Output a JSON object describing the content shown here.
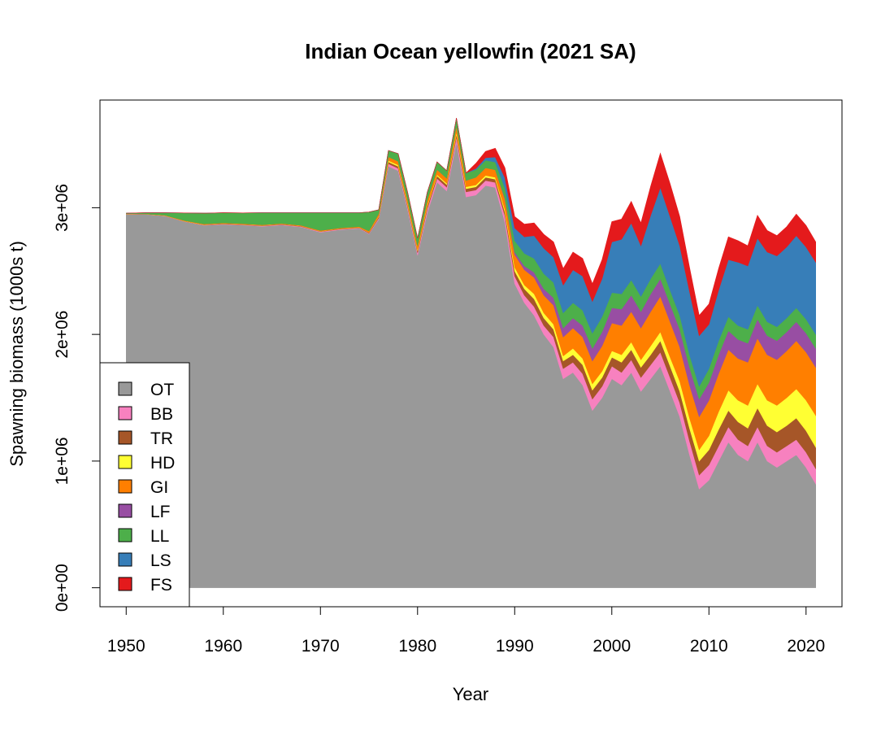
{
  "chart_data": {
    "type": "area",
    "stacked": true,
    "title": "Indian Ocean yellowfin (2021 SA)",
    "xlabel": "Year",
    "ylabel": "Spawning biomass (1000s t)",
    "xlim": [
      1947.3,
      2023.7
    ],
    "ylim": [
      -150000,
      3850000
    ],
    "x_ticks": [
      1950,
      1960,
      1970,
      1980,
      1990,
      2000,
      2010,
      2020
    ],
    "x_tick_labels": [
      "1950",
      "1960",
      "1970",
      "1980",
      "1990",
      "2000",
      "2010",
      "2020"
    ],
    "y_ticks": [
      0,
      1000000,
      2000000,
      3000000
    ],
    "y_tick_labels": [
      "0e+00",
      "1e+06",
      "2e+06",
      "3e+06"
    ],
    "grid": false,
    "legend_position": "bottom-left",
    "x": [
      1950,
      1952,
      1954,
      1956,
      1958,
      1960,
      1962,
      1964,
      1966,
      1968,
      1970,
      1972,
      1974,
      1975,
      1976,
      1977,
      1978,
      1979,
      1980,
      1981,
      1982,
      1983,
      1984,
      1985,
      1986,
      1987,
      1988,
      1989,
      1990,
      1991,
      1992,
      1993,
      1994,
      1995,
      1996,
      1997,
      1998,
      1999,
      2000,
      2001,
      2002,
      2003,
      2004,
      2005,
      2006,
      2007,
      2008,
      2009,
      2010,
      2011,
      2012,
      2013,
      2014,
      2015,
      2016,
      2017,
      2018,
      2019,
      2020,
      2021
    ],
    "series": [
      {
        "name": "OT",
        "color": "#999999",
        "values": [
          2949000,
          2947000,
          2934000,
          2890000,
          2861000,
          2869000,
          2863000,
          2853000,
          2863000,
          2848000,
          2806000,
          2826000,
          2836000,
          2794000,
          2909000,
          3327000,
          3292000,
          2980000,
          2625000,
          2961000,
          3202000,
          3133000,
          3518000,
          3085000,
          3100000,
          3175000,
          3160000,
          2885000,
          2400000,
          2250000,
          2150000,
          2000000,
          1900000,
          1650000,
          1700000,
          1600000,
          1400000,
          1500000,
          1650000,
          1600000,
          1700000,
          1550000,
          1650000,
          1750000,
          1550000,
          1350000,
          1050000,
          780000,
          850000,
          1000000,
          1150000,
          1050000,
          1000000,
          1150000,
          1000000,
          950000,
          1000000,
          1050000,
          950000,
          820000
        ]
      },
      {
        "name": "BB",
        "color": "#F781BF",
        "values": [
          1000,
          1000,
          2000,
          2000,
          3000,
          3000,
          3000,
          4000,
          4000,
          4000,
          5000,
          5000,
          5000,
          5000,
          10000,
          20000,
          20000,
          20000,
          20000,
          30000,
          30000,
          30000,
          40000,
          40000,
          40000,
          40000,
          40000,
          50000,
          60000,
          60000,
          70000,
          70000,
          80000,
          80000,
          80000,
          90000,
          90000,
          90000,
          100000,
          100000,
          100000,
          110000,
          110000,
          110000,
          110000,
          110000,
          110000,
          110000,
          120000,
          120000,
          120000,
          120000,
          120000,
          120000,
          120000,
          120000,
          120000,
          120000,
          120000,
          120000
        ]
      },
      {
        "name": "TR",
        "color": "#A65628",
        "values": [
          1000,
          1000,
          1000,
          2000,
          2000,
          2000,
          2000,
          3000,
          3000,
          3000,
          3000,
          3000,
          3000,
          5000,
          10000,
          15000,
          15000,
          15000,
          15000,
          20000,
          20000,
          20000,
          25000,
          25000,
          25000,
          25000,
          25000,
          30000,
          40000,
          50000,
          60000,
          60000,
          60000,
          60000,
          60000,
          70000,
          70000,
          70000,
          70000,
          80000,
          80000,
          80000,
          80000,
          90000,
          90000,
          90000,
          100000,
          110000,
          120000,
          130000,
          130000,
          140000,
          140000,
          150000,
          160000,
          160000,
          160000,
          170000,
          170000,
          170000
        ]
      },
      {
        "name": "HD",
        "color": "#FFFF33",
        "values": [
          1000,
          1000,
          1000,
          1000,
          1000,
          1000,
          1000,
          1000,
          1000,
          1000,
          1000,
          1000,
          1000,
          2000,
          5000,
          10000,
          10000,
          10000,
          10000,
          10000,
          10000,
          10000,
          15000,
          15000,
          15000,
          15000,
          15000,
          20000,
          30000,
          30000,
          40000,
          40000,
          40000,
          40000,
          50000,
          50000,
          50000,
          50000,
          50000,
          60000,
          60000,
          60000,
          70000,
          70000,
          70000,
          80000,
          80000,
          90000,
          110000,
          140000,
          160000,
          170000,
          180000,
          190000,
          200000,
          210000,
          220000,
          230000,
          240000,
          250000
        ]
      },
      {
        "name": "GI",
        "color": "#FF7F00",
        "values": [
          2000,
          2000,
          3000,
          4000,
          5000,
          5000,
          5000,
          5000,
          5000,
          5000,
          6000,
          6000,
          6000,
          10000,
          20000,
          30000,
          30000,
          30000,
          30000,
          40000,
          40000,
          40000,
          50000,
          50000,
          60000,
          60000,
          60000,
          80000,
          100000,
          120000,
          130000,
          140000,
          150000,
          150000,
          160000,
          170000,
          180000,
          200000,
          220000,
          230000,
          240000,
          250000,
          270000,
          280000,
          280000,
          270000,
          260000,
          260000,
          280000,
          300000,
          320000,
          330000,
          340000,
          360000,
          360000,
          360000,
          370000,
          380000,
          380000,
          380000
        ]
      },
      {
        "name": "LF",
        "color": "#984EA3",
        "values": [
          0,
          0,
          0,
          0,
          0,
          0,
          0,
          0,
          0,
          0,
          0,
          0,
          0,
          0,
          0,
          0,
          0,
          0,
          0,
          0,
          0,
          0,
          0,
          0,
          0,
          0,
          0,
          10000,
          20000,
          30000,
          40000,
          50000,
          60000,
          70000,
          80000,
          90000,
          100000,
          110000,
          120000,
          130000,
          130000,
          130000,
          140000,
          140000,
          140000,
          140000,
          140000,
          140000,
          140000,
          150000,
          150000,
          150000,
          150000,
          150000,
          150000,
          150000,
          150000,
          150000,
          150000,
          150000
        ]
      },
      {
        "name": "LL",
        "color": "#4DAF4A",
        "values": [
          3000,
          8000,
          20000,
          60000,
          85000,
          80000,
          85000,
          95000,
          85000,
          100000,
          140000,
          120000,
          110000,
          150000,
          30000,
          50000,
          60000,
          60000,
          60000,
          60000,
          60000,
          60000,
          60000,
          60000,
          60000,
          60000,
          60000,
          80000,
          90000,
          100000,
          110000,
          120000,
          120000,
          120000,
          120000,
          120000,
          120000,
          120000,
          120000,
          120000,
          120000,
          120000,
          120000,
          120000,
          110000,
          110000,
          100000,
          100000,
          110000,
          110000,
          110000,
          110000,
          110000,
          110000,
          110000,
          110000,
          110000,
          110000,
          110000,
          110000
        ]
      },
      {
        "name": "LS",
        "color": "#377EB8",
        "values": [
          0,
          0,
          0,
          0,
          0,
          0,
          0,
          0,
          0,
          0,
          0,
          0,
          0,
          0,
          0,
          0,
          0,
          0,
          0,
          0,
          0,
          0,
          0,
          0,
          10000,
          20000,
          40000,
          80000,
          100000,
          130000,
          180000,
          200000,
          200000,
          220000,
          260000,
          270000,
          250000,
          300000,
          400000,
          430000,
          450000,
          400000,
          500000,
          600000,
          580000,
          550000,
          500000,
          400000,
          350000,
          400000,
          450000,
          500000,
          500000,
          530000,
          550000,
          560000,
          560000,
          570000,
          570000,
          570000
        ]
      },
      {
        "name": "FS",
        "color": "#E41A1C",
        "values": [
          0,
          0,
          0,
          0,
          0,
          0,
          0,
          0,
          0,
          0,
          0,
          0,
          0,
          0,
          0,
          0,
          0,
          0,
          0,
          0,
          0,
          0,
          0,
          0,
          40000,
          50000,
          70000,
          80000,
          90000,
          100000,
          100000,
          110000,
          120000,
          130000,
          140000,
          140000,
          140000,
          150000,
          160000,
          160000,
          170000,
          180000,
          230000,
          270000,
          260000,
          230000,
          190000,
          160000,
          160000,
          170000,
          180000,
          170000,
          160000,
          180000,
          170000,
          160000,
          160000,
          170000,
          170000,
          160000
        ]
      }
    ]
  }
}
